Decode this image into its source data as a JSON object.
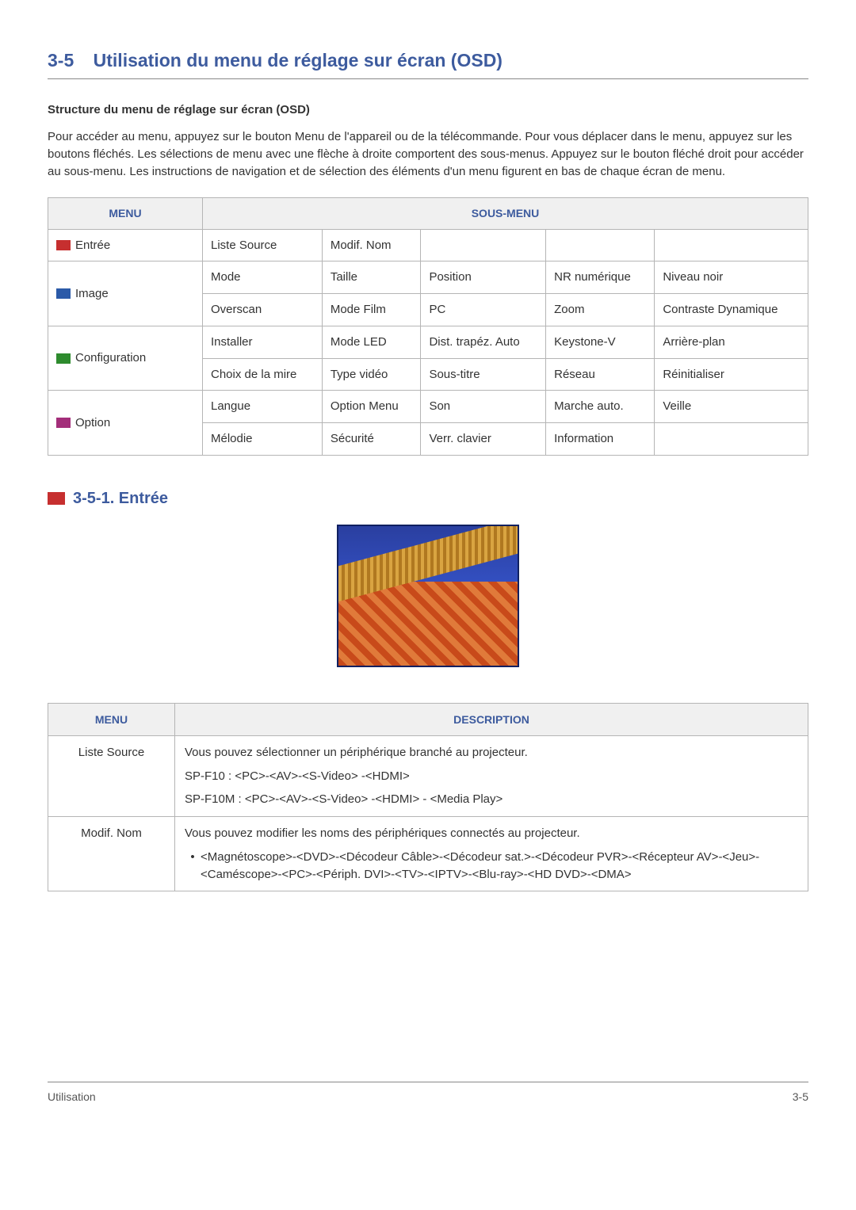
{
  "header": {
    "section_number": "3-5",
    "section_title": "Utilisation du menu de réglage sur écran (OSD)"
  },
  "structure": {
    "heading": "Structure du menu de réglage sur écran (OSD)",
    "intro": "Pour accéder au menu, appuyez sur le bouton Menu de l'appareil ou de la télécommande. Pour vous déplacer dans le menu, appuyez sur les boutons fléchés. Les sélections de menu avec une flèche à droite comportent des sous-menus. Appuyez sur le bouton fléché droit pour accéder au sous-menu. Les instructions de navigation et de sélection des éléments d'un menu figurent en bas de chaque écran de menu."
  },
  "menu_table": {
    "columns": {
      "menu": "Menu",
      "submenu": "Sous-menu"
    },
    "rows": [
      {
        "menu": "Entrée",
        "icon": "icon-red",
        "rowspan": 1,
        "sub": [
          "Liste Source",
          "Modif. Nom",
          "",
          "",
          ""
        ]
      },
      {
        "menu": "Image",
        "icon": "icon-blue",
        "rowspan": 2,
        "sub": [
          "Mode",
          "Taille",
          "Position",
          "NR numérique",
          "Niveau noir"
        ]
      },
      {
        "menu": "",
        "icon": "",
        "rowspan": 0,
        "sub": [
          "Overscan",
          "Mode Film",
          "PC",
          "Zoom",
          "Contraste Dynamique"
        ]
      },
      {
        "menu": "Configuration",
        "icon": "icon-green",
        "rowspan": 2,
        "sub": [
          "Installer",
          "Mode LED",
          "Dist. trapéz. Auto",
          "Keystone-V",
          "Arrière-plan"
        ]
      },
      {
        "menu": "",
        "icon": "",
        "rowspan": 0,
        "sub": [
          "Choix de la mire",
          "Type vidéo",
          "Sous-titre",
          "Réseau",
          "Réinitialiser"
        ]
      },
      {
        "menu": "Option",
        "icon": "icon-mag",
        "rowspan": 2,
        "sub": [
          "Langue",
          "Option Menu",
          "Son",
          "Marche auto.",
          "Veille"
        ]
      },
      {
        "menu": "",
        "icon": "",
        "rowspan": 0,
        "sub": [
          "Mélodie",
          "Sécurité",
          "Verr. clavier",
          "Information",
          ""
        ]
      }
    ]
  },
  "sub_section": {
    "number_title": "3-5-1. Entrée"
  },
  "desc_table": {
    "columns": {
      "menu": "Menu",
      "desc": "Description"
    },
    "rows": [
      {
        "menu": "Liste Source",
        "lines": [
          "Vous pouvez sélectionner un périphérique branché au projecteur.",
          "SP-F10 : <PC>-<AV>-<S-Video> -<HDMI>",
          "SP-F10M : <PC>-<AV>-<S-Video> -<HDMI> - <Media Play>"
        ]
      },
      {
        "menu": "Modif. Nom",
        "intro": "Vous pouvez modifier les noms des périphériques connectés au projecteur.",
        "bullet": "<Magnétoscope>-<DVD>-<Décodeur Câble>-<Décodeur sat.>-<Décodeur PVR>-<Récepteur AV>-<Jeu>-<Caméscope>-<PC>-<Périph. DVI>-<TV>-<IPTV>-<Blu-ray>-<HD DVD>-<DMA>"
      }
    ]
  },
  "footer": {
    "left": "Utilisation",
    "right": "3-5"
  }
}
